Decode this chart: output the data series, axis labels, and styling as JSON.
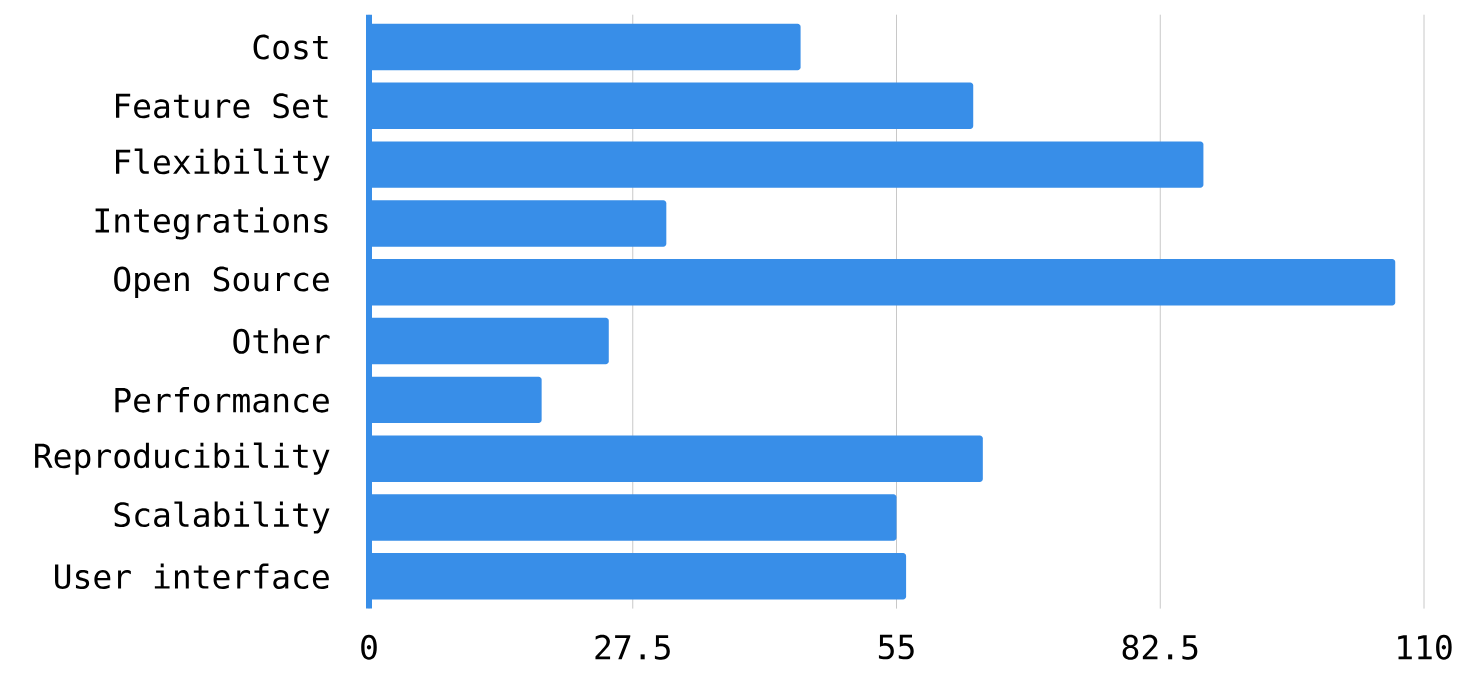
{
  "chart_data": {
    "type": "bar",
    "orientation": "horizontal",
    "categories": [
      "Cost",
      "Feature Set",
      "Flexibility",
      "Integrations",
      "Open Source",
      "Other",
      "Performance",
      "Reproducibility",
      "Scalability",
      "User interface"
    ],
    "values": [
      45,
      63,
      87,
      31,
      107,
      25,
      18,
      64,
      55,
      56
    ],
    "color": "#388ee8",
    "xlim": [
      0,
      110
    ],
    "xticks": [
      0,
      27.5,
      55,
      82.5,
      110
    ],
    "grid": "x"
  }
}
